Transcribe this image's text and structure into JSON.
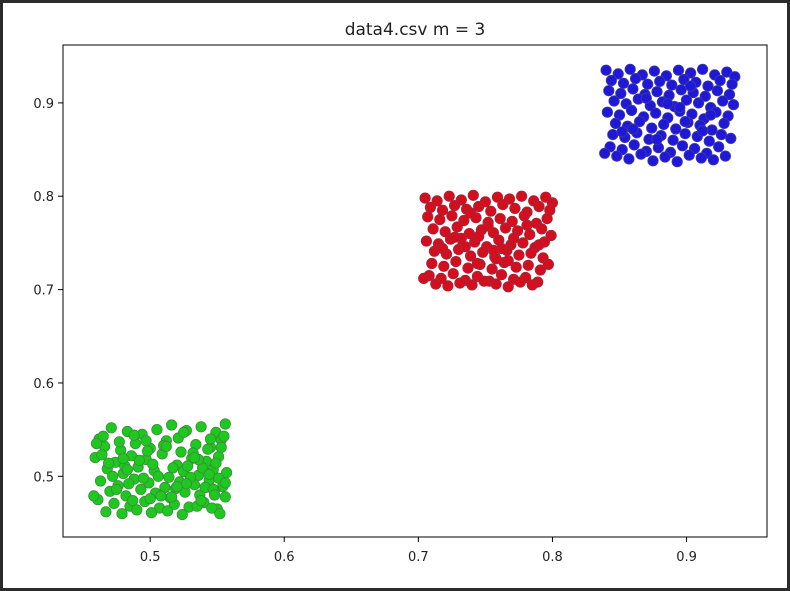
{
  "chart_data": {
    "type": "scatter",
    "title": "data4.csv m = 3",
    "xlabel": "",
    "ylabel": "",
    "xlim": [
      0.435,
      0.96
    ],
    "ylim": [
      0.435,
      0.962
    ],
    "xticks": [
      0.5,
      0.6,
      0.7,
      0.8,
      0.9
    ],
    "yticks": [
      0.5,
      0.6,
      0.7,
      0.8,
      0.9
    ],
    "xtick_labels": [
      "0.5",
      "0.6",
      "0.7",
      "0.8",
      "0.9"
    ],
    "ytick_labels": [
      "0.5",
      "0.6",
      "0.7",
      "0.8",
      "0.9"
    ],
    "grid": false,
    "series": [
      {
        "color": "#1ec81e",
        "edge_color": "#3c8c3c",
        "x_range": [
          0.455,
          0.558
        ],
        "y_range": [
          0.458,
          0.558
        ],
        "x": [
          0.462,
          0.471,
          0.483,
          0.494,
          0.505,
          0.516,
          0.527,
          0.538,
          0.549,
          0.556,
          0.466,
          0.478,
          0.489,
          0.5,
          0.512,
          0.523,
          0.534,
          0.545,
          0.553,
          0.459,
          0.474,
          0.486,
          0.497,
          0.509,
          0.52,
          0.531,
          0.542,
          0.551,
          0.468,
          0.48,
          0.491,
          0.503,
          0.514,
          0.525,
          0.536,
          0.547,
          0.557,
          0.463,
          0.476,
          0.488,
          0.499,
          0.511,
          0.522,
          0.533,
          0.544,
          0.554,
          0.47,
          0.482,
          0.493,
          0.504,
          0.515,
          0.526,
          0.537,
          0.548,
          0.556,
          0.461,
          0.473,
          0.485,
          0.496,
          0.507,
          0.518,
          0.529,
          0.54,
          0.55,
          0.467,
          0.479,
          0.49,
          0.501,
          0.513,
          0.524,
          0.535,
          0.546,
          0.552,
          0.465,
          0.477,
          0.488,
          0.498,
          0.51,
          0.521,
          0.532,
          0.543,
          0.555,
          0.469,
          0.481,
          0.492,
          0.502,
          0.517,
          0.528,
          0.539,
          0.549,
          0.472,
          0.484,
          0.495,
          0.506,
          0.519,
          0.53,
          0.541,
          0.551,
          0.458,
          0.475,
          0.487,
          0.508,
          0.516,
          0.527,
          0.538,
          0.547,
          0.556,
          0.464,
          0.48,
          0.497,
          0.512,
          0.525,
          0.536,
          0.545,
          0.553,
          0.46,
          0.483,
          0.5,
          0.52,
          0.533,
          0.544,
          0.548
        ],
        "y": [
          0.54,
          0.552,
          0.548,
          0.545,
          0.55,
          0.555,
          0.549,
          0.553,
          0.547,
          0.556,
          0.532,
          0.528,
          0.535,
          0.53,
          0.538,
          0.526,
          0.534,
          0.531,
          0.539,
          0.52,
          0.515,
          0.522,
          0.518,
          0.524,
          0.512,
          0.519,
          0.516,
          0.521,
          0.508,
          0.503,
          0.51,
          0.506,
          0.499,
          0.505,
          0.501,
          0.507,
          0.504,
          0.495,
          0.49,
          0.497,
          0.493,
          0.488,
          0.494,
          0.491,
          0.496,
          0.489,
          0.484,
          0.479,
          0.486,
          0.482,
          0.477,
          0.483,
          0.48,
          0.485,
          0.478,
          0.475,
          0.471,
          0.468,
          0.473,
          0.466,
          0.47,
          0.467,
          0.472,
          0.465,
          0.462,
          0.46,
          0.464,
          0.461,
          0.463,
          0.459,
          0.468,
          0.466,
          0.46,
          0.543,
          0.537,
          0.544,
          0.527,
          0.533,
          0.541,
          0.525,
          0.529,
          0.543,
          0.514,
          0.511,
          0.517,
          0.513,
          0.509,
          0.511,
          0.509,
          0.514,
          0.5,
          0.492,
          0.498,
          0.5,
          0.487,
          0.499,
          0.488,
          0.498,
          0.479,
          0.486,
          0.474,
          0.479,
          0.478,
          0.492,
          0.474,
          0.486,
          0.493,
          0.523,
          0.519,
          0.538,
          0.532,
          0.547,
          0.518,
          0.54,
          0.531,
          0.535,
          0.507,
          0.476,
          0.489,
          0.52,
          0.502,
          0.48
        ]
      },
      {
        "color": "#d40e1e",
        "edge_color": "#9c2a3a",
        "x_range": [
          0.703,
          0.802
        ],
        "y_range": [
          0.704,
          0.802
        ],
        "x": [
          0.705,
          0.714,
          0.723,
          0.732,
          0.741,
          0.75,
          0.759,
          0.768,
          0.777,
          0.786,
          0.795,
          0.8,
          0.709,
          0.718,
          0.727,
          0.736,
          0.745,
          0.754,
          0.763,
          0.772,
          0.781,
          0.79,
          0.798,
          0.707,
          0.716,
          0.725,
          0.734,
          0.743,
          0.752,
          0.761,
          0.77,
          0.779,
          0.788,
          0.796,
          0.711,
          0.72,
          0.729,
          0.738,
          0.747,
          0.756,
          0.765,
          0.774,
          0.783,
          0.792,
          0.799,
          0.706,
          0.715,
          0.724,
          0.733,
          0.742,
          0.751,
          0.76,
          0.769,
          0.778,
          0.787,
          0.794,
          0.712,
          0.721,
          0.73,
          0.739,
          0.748,
          0.757,
          0.766,
          0.775,
          0.784,
          0.793,
          0.71,
          0.719,
          0.728,
          0.737,
          0.746,
          0.755,
          0.764,
          0.773,
          0.782,
          0.791,
          0.797,
          0.708,
          0.717,
          0.726,
          0.735,
          0.744,
          0.753,
          0.762,
          0.771,
          0.78,
          0.789,
          0.713,
          0.722,
          0.731,
          0.74,
          0.749,
          0.758,
          0.767,
          0.776,
          0.785,
          0.704,
          0.732,
          0.745,
          0.758,
          0.771,
          0.735,
          0.762,
          0.727,
          0.752,
          0.739,
          0.767,
          0.781,
          0.718,
          0.744,
          0.756,
          0.79
        ],
        "y": [
          0.798,
          0.795,
          0.8,
          0.796,
          0.801,
          0.794,
          0.799,
          0.797,
          0.8,
          0.795,
          0.799,
          0.793,
          0.788,
          0.785,
          0.79,
          0.786,
          0.789,
          0.784,
          0.791,
          0.787,
          0.783,
          0.789,
          0.785,
          0.778,
          0.775,
          0.779,
          0.774,
          0.777,
          0.772,
          0.776,
          0.773,
          0.779,
          0.771,
          0.776,
          0.765,
          0.762,
          0.767,
          0.76,
          0.764,
          0.761,
          0.766,
          0.763,
          0.759,
          0.765,
          0.758,
          0.752,
          0.749,
          0.754,
          0.747,
          0.751,
          0.746,
          0.753,
          0.748,
          0.75,
          0.745,
          0.751,
          0.741,
          0.738,
          0.743,
          0.736,
          0.74,
          0.735,
          0.742,
          0.737,
          0.739,
          0.734,
          0.728,
          0.725,
          0.73,
          0.723,
          0.727,
          0.722,
          0.729,
          0.724,
          0.726,
          0.721,
          0.727,
          0.715,
          0.712,
          0.717,
          0.71,
          0.714,
          0.709,
          0.716,
          0.711,
          0.713,
          0.708,
          0.706,
          0.704,
          0.707,
          0.705,
          0.709,
          0.706,
          0.703,
          0.708,
          0.705,
          0.712,
          0.755,
          0.757,
          0.733,
          0.755,
          0.746,
          0.744,
          0.756,
          0.768,
          0.782,
          0.731,
          0.769,
          0.744,
          0.728,
          0.742,
          0.748
        ]
      },
      {
        "color": "#2018d8",
        "edge_color": "#3c3c9c",
        "x_range": [
          0.838,
          0.938
        ],
        "y_range": [
          0.836,
          0.938
        ],
        "x": [
          0.84,
          0.849,
          0.858,
          0.867,
          0.876,
          0.885,
          0.894,
          0.903,
          0.912,
          0.921,
          0.93,
          0.936,
          0.844,
          0.853,
          0.862,
          0.871,
          0.88,
          0.889,
          0.898,
          0.907,
          0.916,
          0.925,
          0.934,
          0.842,
          0.851,
          0.86,
          0.869,
          0.878,
          0.887,
          0.896,
          0.905,
          0.914,
          0.923,
          0.932,
          0.846,
          0.855,
          0.864,
          0.873,
          0.882,
          0.891,
          0.9,
          0.909,
          0.918,
          0.927,
          0.935,
          0.841,
          0.85,
          0.859,
          0.868,
          0.877,
          0.886,
          0.895,
          0.904,
          0.913,
          0.922,
          0.931,
          0.847,
          0.856,
          0.865,
          0.874,
          0.883,
          0.892,
          0.901,
          0.91,
          0.919,
          0.928,
          0.845,
          0.854,
          0.863,
          0.872,
          0.881,
          0.89,
          0.899,
          0.908,
          0.917,
          0.926,
          0.933,
          0.843,
          0.852,
          0.861,
          0.87,
          0.879,
          0.888,
          0.897,
          0.906,
          0.915,
          0.924,
          0.848,
          0.857,
          0.866,
          0.875,
          0.884,
          0.893,
          0.902,
          0.911,
          0.92,
          0.929,
          0.839,
          0.87,
          0.886,
          0.903,
          0.918,
          0.86,
          0.895,
          0.878,
          0.912,
          0.852,
          0.899
        ],
        "y": [
          0.935,
          0.931,
          0.936,
          0.93,
          0.934,
          0.929,
          0.935,
          0.932,
          0.936,
          0.93,
          0.933,
          0.928,
          0.924,
          0.921,
          0.926,
          0.92,
          0.923,
          0.919,
          0.925,
          0.922,
          0.918,
          0.924,
          0.92,
          0.913,
          0.91,
          0.915,
          0.909,
          0.912,
          0.908,
          0.914,
          0.911,
          0.907,
          0.913,
          0.909,
          0.902,
          0.899,
          0.904,
          0.897,
          0.901,
          0.896,
          0.903,
          0.9,
          0.895,
          0.902,
          0.898,
          0.89,
          0.887,
          0.892,
          0.885,
          0.889,
          0.884,
          0.891,
          0.888,
          0.883,
          0.89,
          0.886,
          0.878,
          0.875,
          0.88,
          0.873,
          0.877,
          0.872,
          0.879,
          0.876,
          0.871,
          0.878,
          0.866,
          0.863,
          0.868,
          0.861,
          0.865,
          0.86,
          0.867,
          0.864,
          0.859,
          0.866,
          0.862,
          0.853,
          0.85,
          0.855,
          0.848,
          0.852,
          0.847,
          0.854,
          0.851,
          0.846,
          0.853,
          0.843,
          0.84,
          0.845,
          0.838,
          0.842,
          0.837,
          0.844,
          0.841,
          0.839,
          0.843,
          0.846,
          0.905,
          0.899,
          0.918,
          0.887,
          0.872,
          0.895,
          0.861,
          0.87,
          0.869,
          0.88
        ]
      }
    ]
  }
}
